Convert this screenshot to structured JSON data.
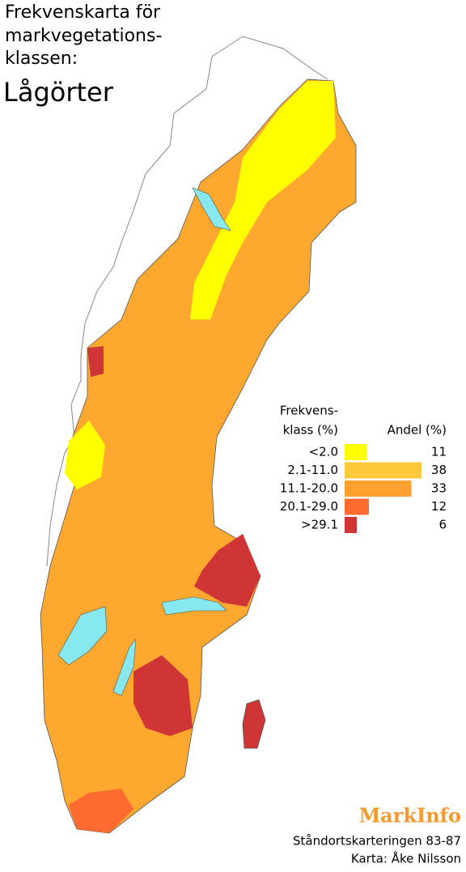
{
  "header": {
    "title_lines": [
      "Frekvenskarta för",
      "markvegetations-",
      "klassen:"
    ],
    "subject": "Lågörter"
  },
  "legend": {
    "class_header": [
      "Frekvens-",
      "klass (%)"
    ],
    "share_header": "Andel (%)",
    "classes": [
      {
        "label": "<2.0",
        "value": 11,
        "color": "#ffff00"
      },
      {
        "label": "2.1-11.0",
        "value": 38,
        "color": "#ffc83a"
      },
      {
        "label": "11.1-20.0",
        "value": 33,
        "color": "#ffa030"
      },
      {
        "label": "20.1-29.0",
        "value": 12,
        "color": "#ff6a30"
      },
      {
        "label": ">29.1",
        "value": 6,
        "color": "#d03535"
      }
    ]
  },
  "footer": {
    "brand": "MarkInfo",
    "source": "Ståndortskarteringen 83-87",
    "credit": "Karta: Åke Nilsson"
  }
}
